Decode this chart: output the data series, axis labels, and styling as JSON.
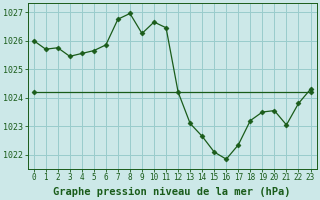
{
  "title": "Graphe pression niveau de la mer (hPa)",
  "background_color": "#cce8e8",
  "plot_bg_color": "#cce8e8",
  "grid_color": "#99cccc",
  "line_color": "#1a5c1a",
  "marker_color": "#1a5c1a",
  "xlim": [
    -0.5,
    23.5
  ],
  "ylim": [
    1021.5,
    1027.3
  ],
  "yticks": [
    1022,
    1023,
    1024,
    1025,
    1026,
    1027
  ],
  "xticks": [
    0,
    1,
    2,
    3,
    4,
    5,
    6,
    7,
    8,
    9,
    10,
    11,
    12,
    13,
    14,
    15,
    16,
    17,
    18,
    19,
    20,
    21,
    22,
    23
  ],
  "series1_x": [
    0,
    1,
    2,
    3,
    4,
    5,
    6,
    7,
    8,
    9,
    10,
    11,
    12,
    13,
    14,
    15,
    16,
    17,
    18,
    19,
    20,
    21,
    22,
    23
  ],
  "series1_y": [
    1026.0,
    1025.7,
    1025.75,
    1025.45,
    1025.55,
    1025.65,
    1025.85,
    1026.75,
    1026.95,
    1026.25,
    1026.65,
    1026.45,
    1024.2,
    1023.1,
    1022.65,
    1022.1,
    1021.85,
    1022.35,
    1023.2,
    1023.5,
    1023.55,
    1023.05,
    1023.8,
    1024.3
  ],
  "series2_x": [
    0,
    23
  ],
  "series2_y": [
    1024.2,
    1024.2
  ],
  "title_fontsize": 7.5
}
